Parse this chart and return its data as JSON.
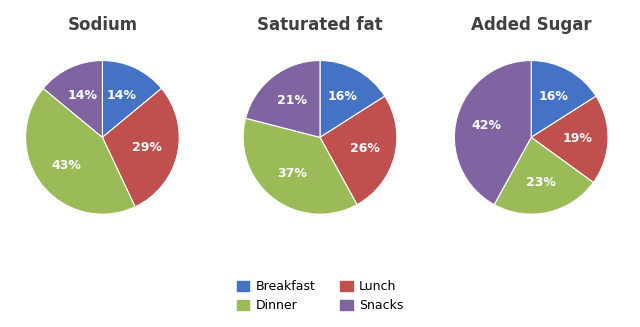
{
  "charts": [
    {
      "title": "Sodium",
      "values": [
        14,
        29,
        43,
        14
      ],
      "labels": [
        "14%",
        "29%",
        "43%",
        "14%"
      ],
      "start_angle": 90
    },
    {
      "title": "Saturated fat",
      "values": [
        16,
        26,
        37,
        21
      ],
      "labels": [
        "16%",
        "26%",
        "37%",
        "21%"
      ],
      "start_angle": 90
    },
    {
      "title": "Added Sugar",
      "values": [
        16,
        19,
        23,
        42
      ],
      "labels": [
        "16%",
        "19%",
        "23%",
        "42%"
      ],
      "start_angle": 90
    }
  ],
  "categories": [
    "Breakfast",
    "Lunch",
    "Dinner",
    "Snacks"
  ],
  "colors": [
    "#4472C4",
    "#C0504D",
    "#9BBB59",
    "#8064A2"
  ],
  "title_fontsize": 12,
  "label_fontsize": 9,
  "legend_fontsize": 9
}
